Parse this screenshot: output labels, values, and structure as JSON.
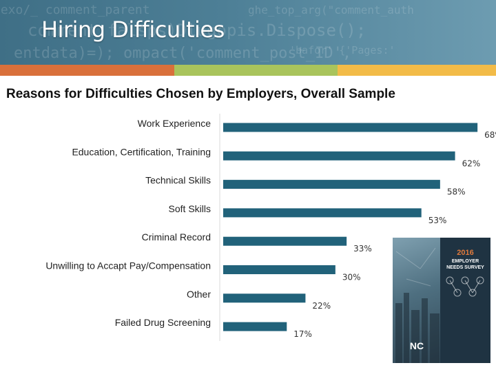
{
  "header": {
    "title": "Hiring Difficulties",
    "stripe_colors": [
      "#d9703b",
      "#a9c45c",
      "#f2bb48"
    ]
  },
  "chart_data": {
    "type": "bar",
    "orientation": "horizontal",
    "title": "Reasons for Difficulties Chosen by Employers, Overall Sample",
    "categories": [
      "Work Experience",
      "Education, Certification, Training",
      "Technical Skills",
      "Soft Skills",
      "Criminal Record",
      "Unwilling to Accapt Pay/Compensation",
      "Other",
      "Failed Drug Screening"
    ],
    "values": [
      68,
      62,
      58,
      53,
      33,
      30,
      22,
      17
    ],
    "value_labels": [
      "68%",
      "62%",
      "58%",
      "53%",
      "33%",
      "30%",
      "22%",
      "17%"
    ],
    "xlim": [
      0,
      70
    ],
    "bar_color": "#21627a",
    "grid": false
  },
  "cover": {
    "year": "2016",
    "line1": "EMPLOYER",
    "line2": "NEEDS SURVEY",
    "logo": "NC",
    "accent": "#e07a3c"
  }
}
